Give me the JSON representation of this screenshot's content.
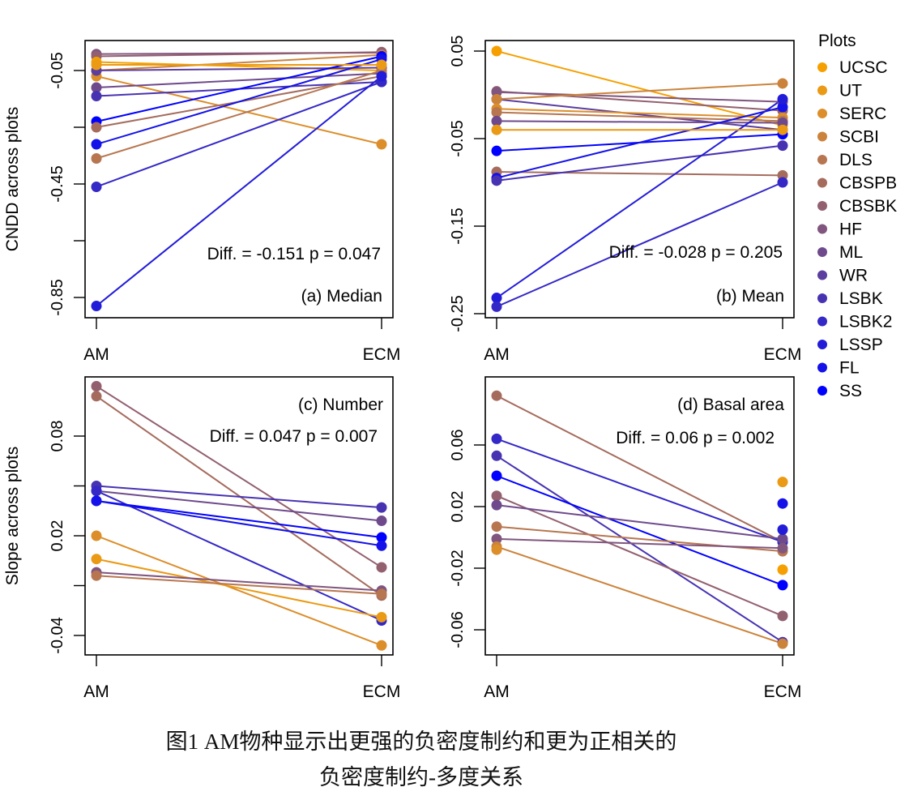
{
  "caption": {
    "line1": "图1 AM物种显示出更强的负密度制约和更为正相关的",
    "line2": "负密度制约-多度关系"
  },
  "legend": {
    "title": "Plots",
    "entries": [
      {
        "name": "UCSC",
        "color": "#F5A000"
      },
      {
        "name": "UT",
        "color": "#EA9A14"
      },
      {
        "name": "SERC",
        "color": "#DC8E2A"
      },
      {
        "name": "SCBI",
        "color": "#CB833C"
      },
      {
        "name": "DLS",
        "color": "#B77650"
      },
      {
        "name": "CBSPB",
        "color": "#A56C5E"
      },
      {
        "name": "CBSBK",
        "color": "#93606F"
      },
      {
        "name": "HF",
        "color": "#80557E"
      },
      {
        "name": "ML",
        "color": "#6E4A8C"
      },
      {
        "name": "WR",
        "color": "#5B3E9E"
      },
      {
        "name": "LSBK",
        "color": "#4733B2"
      },
      {
        "name": "LSBK2",
        "color": "#3428C6"
      },
      {
        "name": "LSSP",
        "color": "#221CD8"
      },
      {
        "name": "FL",
        "color": "#1412E8"
      },
      {
        "name": "SS",
        "color": "#0000FF"
      }
    ]
  },
  "chart_data": [
    {
      "type": "line",
      "panel": "a",
      "title": "(a) Median",
      "annotation": "Diff. = -0.151 p = 0.047",
      "xlabel": "",
      "ylabel": "CNDD across plots",
      "categories": [
        "AM",
        "ECM"
      ],
      "yticks": [
        -0.05,
        -0.25,
        -0.45,
        -0.65,
        -0.85
      ],
      "ytick_labels": [
        "-0.05",
        "",
        "-0.45",
        "",
        "-0.85"
      ],
      "ylim": [
        -0.91,
        0.06
      ],
      "series": [
        {
          "name": "HF",
          "values": [
            0.008,
            0.013
          ]
        },
        {
          "name": "CBSBK",
          "values": [
            0.0,
            0.015
          ]
        },
        {
          "name": "UCSC",
          "values": [
            -0.02,
            -0.05
          ]
        },
        {
          "name": "SCBI",
          "values": [
            -0.05,
            0.005
          ]
        },
        {
          "name": "SERC",
          "values": [
            -0.07,
            -0.31
          ]
        },
        {
          "name": "WR",
          "values": [
            -0.05,
            -0.04
          ]
        },
        {
          "name": "ML",
          "values": [
            -0.11,
            -0.06
          ]
        },
        {
          "name": "LSBK",
          "values": [
            -0.14,
            -0.09
          ]
        },
        {
          "name": "SS",
          "values": [
            -0.23,
            0.0
          ]
        },
        {
          "name": "CBSPB",
          "values": [
            -0.25,
            -0.07
          ]
        },
        {
          "name": "FL",
          "values": [
            -0.31,
            -0.01
          ]
        },
        {
          "name": "DLS",
          "values": [
            -0.36,
            -0.05
          ]
        },
        {
          "name": "LSBK2",
          "values": [
            -0.46,
            -0.09
          ]
        },
        {
          "name": "LSSP",
          "values": [
            -0.88,
            -0.07
          ]
        },
        {
          "name": "UT",
          "values": [
            -0.03,
            -0.03
          ]
        }
      ]
    },
    {
      "type": "line",
      "panel": "b",
      "title": "(b) Mean",
      "annotation": "Diff. = -0.028 p = 0.205",
      "xlabel": "",
      "ylabel": "",
      "categories": [
        "AM",
        "ECM"
      ],
      "yticks": [
        0.05,
        -0.05,
        -0.15,
        -0.25
      ],
      "ytick_labels": [
        "0.05",
        "-0.05",
        "-0.15",
        "-0.25"
      ],
      "ylim": [
        -0.256,
        0.062
      ],
      "series": [
        {
          "name": "UCSC",
          "values": [
            0.05,
            -0.035
          ]
        },
        {
          "name": "CBSBK",
          "values": [
            0.004,
            -0.018
          ]
        },
        {
          "name": "HF",
          "values": [
            0.003,
            -0.008
          ]
        },
        {
          "name": "WR",
          "values": [
            -0.005,
            -0.04
          ]
        },
        {
          "name": "SCBI",
          "values": [
            -0.005,
            0.013
          ]
        },
        {
          "name": "SERC",
          "values": [
            -0.016,
            -0.026
          ]
        },
        {
          "name": "DLS",
          "values": [
            -0.02,
            -0.03
          ]
        },
        {
          "name": "ML",
          "values": [
            -0.03,
            -0.032
          ]
        },
        {
          "name": "SS",
          "values": [
            -0.064,
            -0.045
          ]
        },
        {
          "name": "CBSPB",
          "values": [
            -0.088,
            -0.092
          ]
        },
        {
          "name": "FL",
          "values": [
            -0.095,
            -0.014
          ]
        },
        {
          "name": "LSBK",
          "values": [
            -0.098,
            -0.058
          ]
        },
        {
          "name": "LSSP",
          "values": [
            -0.232,
            -0.005
          ]
        },
        {
          "name": "LSBK2",
          "values": [
            -0.242,
            -0.1
          ]
        },
        {
          "name": "UT",
          "values": [
            -0.04,
            -0.04
          ]
        }
      ]
    },
    {
      "type": "line",
      "panel": "c",
      "title": "(c) Number",
      "annotation": "Diff. = 0.047 p = 0.007",
      "xlabel": "",
      "ylabel": "Slope across plots",
      "categories": [
        "AM",
        "ECM"
      ],
      "yticks": [
        0.08,
        0.05,
        0.02,
        -0.01,
        -0.04
      ],
      "ytick_labels": [
        "0.08",
        "",
        "0.02",
        "",
        "-0.04"
      ],
      "ylim": [
        -0.052,
        0.118
      ],
      "series": [
        {
          "name": "CBSBK",
          "values": [
            0.11,
            0.001
          ]
        },
        {
          "name": "CBSPB",
          "values": [
            0.104,
            -0.016
          ]
        },
        {
          "name": "LSBK",
          "values": [
            0.05,
            0.037
          ]
        },
        {
          "name": "ML",
          "values": [
            0.047,
            0.029
          ]
        },
        {
          "name": "LSBK2",
          "values": [
            0.047,
            -0.031
          ]
        },
        {
          "name": "SS",
          "values": [
            0.041,
            0.019
          ]
        },
        {
          "name": "FL",
          "values": [
            0.041,
            0.014
          ]
        },
        {
          "name": "SERC",
          "values": [
            0.02,
            -0.046
          ]
        },
        {
          "name": "UT",
          "values": [
            0.006,
            -0.029
          ]
        },
        {
          "name": "HF",
          "values": [
            -0.002,
            -0.013
          ]
        },
        {
          "name": "DLS",
          "values": [
            -0.004,
            -0.015
          ]
        }
      ]
    },
    {
      "type": "line",
      "panel": "d",
      "title": "(d) Basal area",
      "annotation": "Diff. = 0.06 p = 0.002",
      "xlabel": "",
      "ylabel": "",
      "categories": [
        "AM",
        "ECM"
      ],
      "yticks": [
        0.06,
        0.02,
        -0.02,
        -0.06
      ],
      "ytick_labels": [
        "0.06",
        "0.02",
        "-0.02",
        "-0.06"
      ],
      "ylim": [
        -0.076,
        0.1
      ],
      "series": [
        {
          "name": "CBSPB",
          "values": [
            0.092,
            -0.003
          ]
        },
        {
          "name": "LSBK2",
          "values": [
            0.064,
            -0.003
          ]
        },
        {
          "name": "LSBK",
          "values": [
            0.053,
            -0.068
          ]
        },
        {
          "name": "SS",
          "values": [
            0.04,
            -0.031
          ]
        },
        {
          "name": "CBSBK",
          "values": [
            0.027,
            -0.051
          ]
        },
        {
          "name": "ML",
          "values": [
            0.021,
            -0.001
          ]
        },
        {
          "name": "DLS",
          "values": [
            0.007,
            -0.009
          ]
        },
        {
          "name": "HF",
          "values": [
            -0.001,
            -0.007
          ]
        },
        {
          "name": "SCBI",
          "values": [
            -0.006,
            -0.069
          ]
        },
        {
          "name": "UCSC",
          "values": [
            null,
            -0.021
          ]
        },
        {
          "name": "UT",
          "values": [
            null,
            0.036
          ]
        },
        {
          "name": "FL",
          "values": [
            null,
            0.022
          ]
        },
        {
          "name": "LSSP",
          "values": [
            null,
            0.005
          ]
        },
        {
          "name": "SERC",
          "values": [
            -0.008,
            null
          ]
        }
      ]
    }
  ]
}
